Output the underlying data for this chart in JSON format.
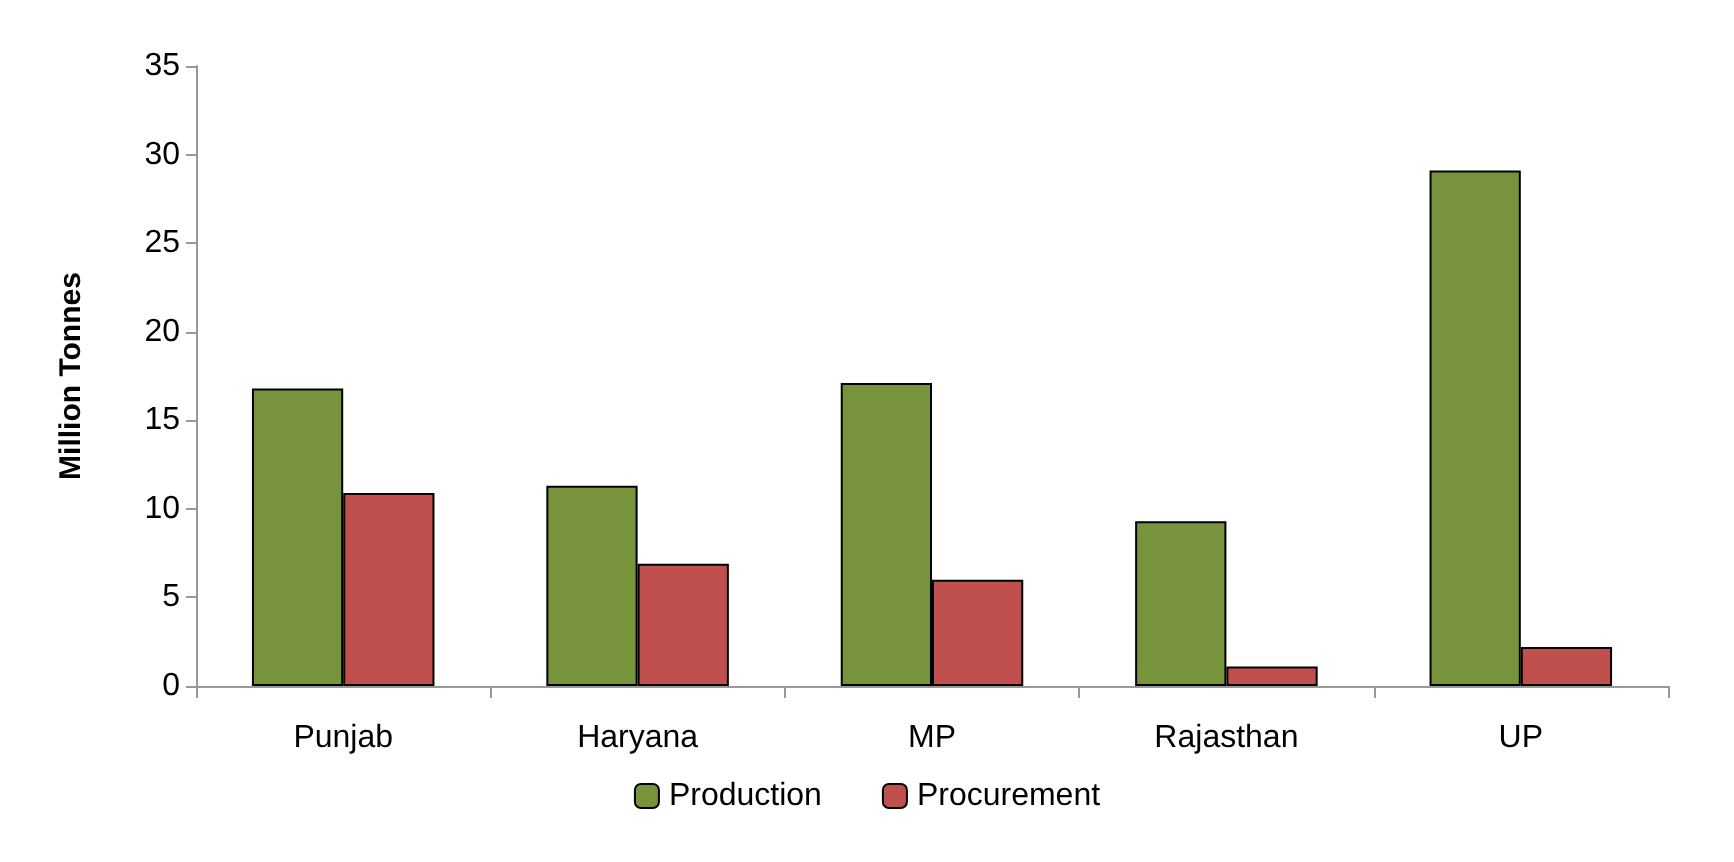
{
  "chart_data": {
    "type": "bar",
    "ylabel": "Million Tonnes",
    "categories": [
      "Punjab",
      "Haryana",
      "MP",
      "Rajasthan",
      "UP"
    ],
    "series": [
      {
        "name": "Production",
        "color": "#77933c",
        "values": [
          16.8,
          11.3,
          17.1,
          9.3,
          29.1
        ]
      },
      {
        "name": "Procurement",
        "color": "#c0504d",
        "values": [
          10.9,
          6.9,
          6.0,
          1.1,
          2.2
        ]
      }
    ],
    "ylim": [
      0,
      35
    ],
    "yticks": [
      0,
      5,
      10,
      15,
      20,
      25,
      30,
      35
    ],
    "grid": false,
    "legend": "bottom"
  }
}
